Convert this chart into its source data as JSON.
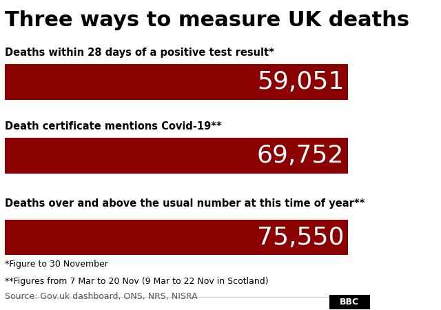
{
  "title": "Three ways to measure UK deaths",
  "title_fontsize": 22,
  "background_color": "#ffffff",
  "bar_color": "#8B0000",
  "bars": [
    {
      "label": "Deaths within 28 days of a positive test result*",
      "value": 59051,
      "display": "59,051"
    },
    {
      "label": "Death certificate mentions Covid-19**",
      "value": 69752,
      "display": "69,752"
    },
    {
      "label": "Deaths over and above the usual number at this time of year**",
      "value": 75550,
      "display": "75,550"
    }
  ],
  "footnote1": "*Figure to 30 November",
  "footnote2": "**Figures from 7 Mar to 20 Nov (9 Mar to 22 Nov in Scotland)",
  "source": "Source: Gov.uk dashboard, ONS, NRS, NISRA",
  "bbc_logo": "BBC",
  "label_fontsize": 10.5,
  "value_fontsize": 26,
  "footnote_fontsize": 9,
  "source_fontsize": 9
}
